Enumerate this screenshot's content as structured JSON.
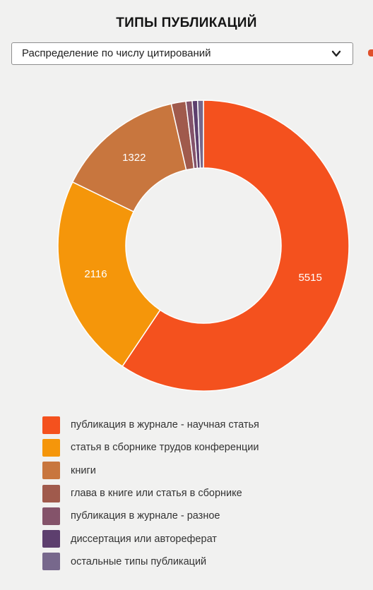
{
  "header": {
    "title": "ТИПЫ ПУБЛИКАЦИЙ"
  },
  "selector": {
    "selected": "Распределение по числу цитирований",
    "icon": "chevron-down-icon"
  },
  "colors": {
    "accent_edge": "#e0502b"
  },
  "chart_data": {
    "type": "pie",
    "donut": true,
    "title": "",
    "categories": [
      "публикация в журнале - научная статья",
      "статья в сборнике трудов конференции",
      "книги",
      "глава в книге или статья в сборнике",
      "публикация в журнале - разное",
      "диссертация или автореферат",
      "остальные типы публикаций"
    ],
    "values": [
      5515,
      2116,
      1322,
      150,
      65,
      55,
      60
    ],
    "data_labels": [
      "5515",
      "2116",
      "1322",
      "",
      "",
      "",
      ""
    ],
    "colors": [
      "#f4511e",
      "#f5960a",
      "#c8763e",
      "#a05a4c",
      "#84536a",
      "#5d3f6e",
      "#77688c"
    ],
    "legend_position": "bottom"
  }
}
